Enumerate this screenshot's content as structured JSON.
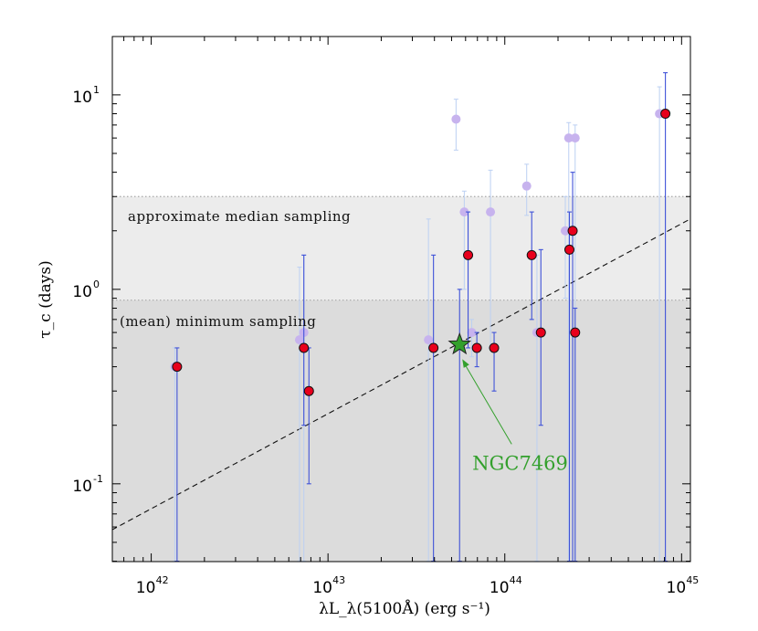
{
  "chart_data": {
    "type": "scatter",
    "xscale": "log",
    "yscale": "log",
    "xlim_log10": [
      41.78,
      45.05
    ],
    "ylim_log10": [
      -1.4,
      1.3
    ],
    "x_ticks": [
      {
        "base": "10",
        "exp": "42",
        "log10": 42
      },
      {
        "base": "10",
        "exp": "43",
        "log10": 43
      },
      {
        "base": "10",
        "exp": "44",
        "log10": 44
      },
      {
        "base": "10",
        "exp": "45",
        "log10": 45
      }
    ],
    "y_ticks": [
      {
        "base": "10",
        "exp": "-1",
        "log10": -1
      },
      {
        "base": "10",
        "exp": "0",
        "log10": 0
      },
      {
        "base": "10",
        "exp": "1",
        "log10": 1
      }
    ],
    "xlabel": "λL_λ(5100Å) (erg s⁻¹)",
    "ylabel": "τ_c (days)",
    "bands": [
      {
        "name": "median-band",
        "label": "approximate median sampling",
        "y_low": 0.88,
        "y_high": 3.0,
        "color": "#ececec"
      },
      {
        "name": "minimum-band",
        "label": "(mean) minimum sampling",
        "y_low": 0.0398,
        "y_high": 0.88,
        "color": "#dcdcdc"
      }
    ],
    "dashed_line": {
      "x": [
        6e+41,
        1.12e+45
      ],
      "y": [
        0.058,
        2.3
      ]
    },
    "series": [
      {
        "name": "faded",
        "color": "#c7b3ee",
        "err_color": "#bcd0f2",
        "points": [
          {
            "x": 1.36e+42,
            "y": 0.4,
            "lo": 0.04,
            "hi": 0.5
          },
          {
            "x": 6.9e+42,
            "y": 0.55,
            "lo": 0.04,
            "hi": 1.3
          },
          {
            "x": 7.3e+42,
            "y": 0.6,
            "lo": 0.04,
            "hi": 1.5
          },
          {
            "x": 3.7e+43,
            "y": 0.55,
            "lo": 0.04,
            "hi": 2.3
          },
          {
            "x": 5.3e+43,
            "y": 7.5,
            "lo": 5.2,
            "hi": 9.5
          },
          {
            "x": 5.9e+43,
            "y": 2.5,
            "lo": 1.0,
            "hi": 3.2
          },
          {
            "x": 6.5e+43,
            "y": 0.6,
            "lo": 0.45,
            "hi": 0.7
          },
          {
            "x": 8.3e+43,
            "y": 2.5,
            "lo": 0.5,
            "hi": 4.1
          },
          {
            "x": 1.33e+44,
            "y": 3.4,
            "lo": 2.4,
            "hi": 4.4
          },
          {
            "x": 1.52e+44,
            "y": 0.6,
            "lo": 0.04,
            "hi": 1.5
          },
          {
            "x": 2.2e+44,
            "y": 2.0,
            "lo": 0.9,
            "hi": 3.0
          },
          {
            "x": 2.3e+44,
            "y": 6.0,
            "lo": 0.04,
            "hi": 7.2
          },
          {
            "x": 2.5e+44,
            "y": 6.0,
            "lo": 0.04,
            "hi": 7.0
          },
          {
            "x": 7.5e+44,
            "y": 8.0,
            "lo": 0.04,
            "hi": 11.0
          }
        ]
      },
      {
        "name": "measured",
        "color": "#e8001c",
        "err_color": "#3f52d8",
        "points": [
          {
            "x": 1.4e+42,
            "y": 0.4,
            "lo": 0.04,
            "hi": 0.5
          },
          {
            "x": 7.3e+42,
            "y": 0.5,
            "lo": 0.2,
            "hi": 1.5
          },
          {
            "x": 7.8e+42,
            "y": 0.3,
            "lo": 0.1,
            "hi": 0.5
          },
          {
            "x": 3.95e+43,
            "y": 0.5,
            "lo": 0.04,
            "hi": 1.5
          },
          {
            "x": 6.2e+43,
            "y": 1.5,
            "lo": 0.5,
            "hi": 2.5
          },
          {
            "x": 6.95e+43,
            "y": 0.5,
            "lo": 0.4,
            "hi": 0.6
          },
          {
            "x": 8.7e+43,
            "y": 0.5,
            "lo": 0.3,
            "hi": 0.6
          },
          {
            "x": 1.42e+44,
            "y": 1.5,
            "lo": 0.7,
            "hi": 2.5
          },
          {
            "x": 1.6e+44,
            "y": 0.6,
            "lo": 0.2,
            "hi": 1.6
          },
          {
            "x": 2.32e+44,
            "y": 1.6,
            "lo": 0.04,
            "hi": 2.5
          },
          {
            "x": 2.42e+44,
            "y": 2.0,
            "lo": 0.04,
            "hi": 4.0
          },
          {
            "x": 2.5e+44,
            "y": 0.6,
            "lo": 0.04,
            "hi": 0.8
          },
          {
            "x": 8.1e+44,
            "y": 8.0,
            "lo": 0.04,
            "hi": 13.0
          }
        ]
      }
    ],
    "highlight": {
      "name": "NGC7469",
      "label": "NGC7469",
      "x": 5.55e+43,
      "y": 0.52,
      "lo": 0.04,
      "hi": 1.0,
      "color": "#33a02c",
      "err_color": "#3f52d8"
    }
  }
}
